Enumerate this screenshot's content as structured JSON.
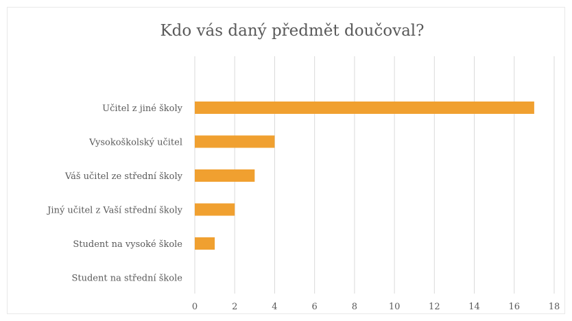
{
  "chart_data": {
    "type": "bar",
    "orientation": "horizontal",
    "title": "Kdo vás daný předmět doučoval?",
    "categories": [
      "Učitel z jiné školy",
      "Vysokoškolský učitel",
      "Váš učitel ze střední školy",
      "Jiný učitel z Vaší střední školy",
      "Student na vysoké škole",
      "Student na střední škole"
    ],
    "values": [
      17,
      4,
      3,
      2,
      1,
      0
    ],
    "xlim": [
      0,
      18
    ],
    "xticks": [
      0,
      2,
      4,
      6,
      8,
      10,
      12,
      14,
      16,
      18
    ],
    "xlabel": "",
    "ylabel": "",
    "grid": "vertical",
    "legend": "none",
    "bar_color": "#f0a030",
    "grid_color": "#d9d9d9",
    "text_color": "#595959"
  }
}
